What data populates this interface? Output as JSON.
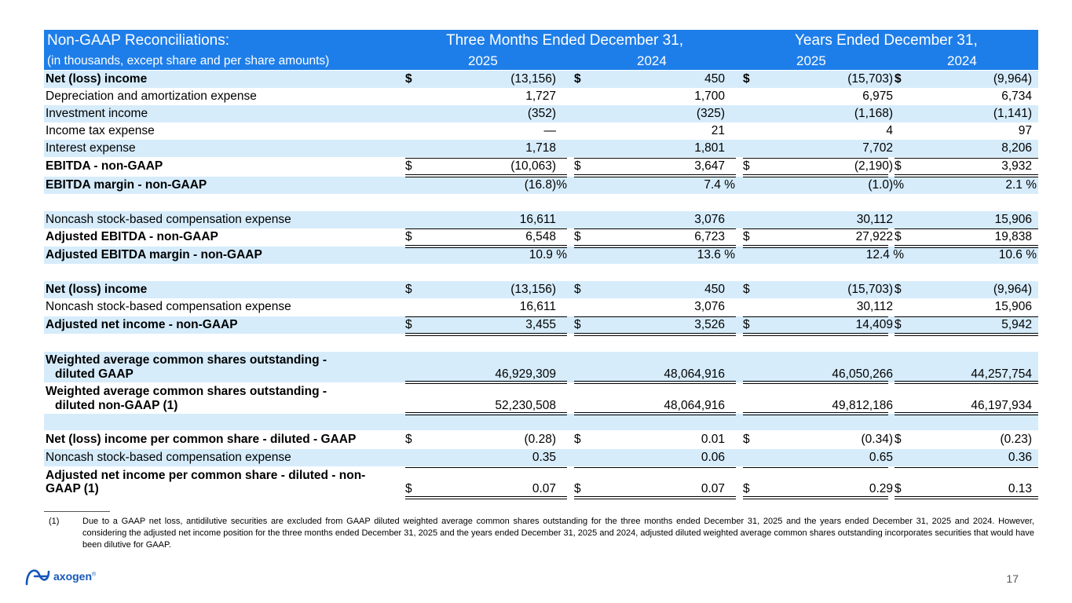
{
  "header": {
    "title": "Non-GAAP Reconciliations:",
    "subtitle": "(in thousands, except share and per share amounts)",
    "three_months": "Three Months Ended December 31,",
    "years": "Years Ended December 31,",
    "cols": [
      "2025",
      "2024",
      "2025",
      "2024"
    ]
  },
  "rows": [
    {
      "label": "Net (loss) income",
      "dollar": "$",
      "v": [
        "(13,156)",
        "450",
        "(15,703)",
        "(9,964)"
      ]
    },
    {
      "label": "Depreciation and amortization expense",
      "v": [
        "1,727",
        "1,700",
        "6,975",
        "6,734"
      ]
    },
    {
      "label": "Investment income",
      "v": [
        "(352)",
        "(325)",
        "(1,168)",
        "(1,141)"
      ]
    },
    {
      "label": "Income tax expense",
      "v": [
        "—",
        "21",
        "4",
        "97"
      ]
    },
    {
      "label": "Interest expense",
      "v": [
        "1,718",
        "1,801",
        "7,702",
        "8,206"
      ]
    },
    {
      "label": "EBITDA - non-GAAP",
      "dollar": "$",
      "v": [
        "(10,063)",
        "3,647",
        "(2,190)",
        "3,932"
      ]
    },
    {
      "label": "EBITDA margin - non-GAAP",
      "v": [
        "(16.8)%",
        "7.4 %",
        "(1.0)%",
        "2.1 %"
      ]
    },
    {
      "label": "Noncash stock-based compensation expense",
      "v": [
        "16,611",
        "3,076",
        "30,112",
        "15,906"
      ]
    },
    {
      "label": "Adjusted EBITDA - non-GAAP",
      "dollar": "$",
      "v": [
        "6,548",
        "6,723",
        "27,922",
        "19,838"
      ]
    },
    {
      "label": "Adjusted EBITDA margin - non-GAAP",
      "v": [
        "10.9 %",
        "13.6 %",
        "12.4 %",
        "10.6 %"
      ]
    },
    {
      "label": "Net (loss) income",
      "dollar": "$",
      "v": [
        "(13,156)",
        "450",
        "(15,703)",
        "(9,964)"
      ]
    },
    {
      "label": "Noncash stock-based compensation expense",
      "v": [
        "16,611",
        "3,076",
        "30,112",
        "15,906"
      ]
    },
    {
      "label": "Adjusted net income - non-GAAP",
      "dollar": "$",
      "v": [
        "3,455",
        "3,526",
        "14,409",
        "5,942"
      ]
    },
    {
      "label1": "Weighted average common shares outstanding -",
      "label2": "diluted GAAP",
      "v": [
        "46,929,309",
        "48,064,916",
        "46,050,266",
        "44,257,754"
      ]
    },
    {
      "label1": "Weighted average common shares outstanding -",
      "label2": "diluted non-GAAP (1)",
      "v": [
        "52,230,508",
        "48,064,916",
        "49,812,186",
        "46,197,934"
      ]
    },
    {
      "label": "Net (loss) income per common share - diluted - GAAP",
      "dollar": "$",
      "v": [
        "(0.28)",
        "0.01",
        "(0.34)",
        "(0.23)"
      ]
    },
    {
      "label": "Noncash stock-based compensation expense",
      "v": [
        "0.35",
        "0.06",
        "0.65",
        "0.36"
      ]
    },
    {
      "label1": "Adjusted net income per common share - diluted - non-",
      "label2": "GAAP (1)",
      "dollar": "$",
      "v": [
        "0.07",
        "0.07",
        "0.29",
        "0.13"
      ]
    }
  ],
  "footnote": {
    "marker": "(1)",
    "text": "Due to a GAAP net loss, antidilutive securities are excluded from GAAP diluted weighted average common shares outstanding for the three months ended December 31, 2025 and the years ended December 31, 2025 and 2024. However, considering the adjusted net income position for the three months ended December 31, 2025 and the years ended December 31, 2025 and 2024, adjusted diluted weighted average common shares outstanding incorporates securities that would have been dilutive for GAAP."
  },
  "logo": {
    "text": "axogen",
    "mark": "®",
    "color": "#1557b8",
    "icon": "axogen-logo-icon"
  },
  "page_number": "17",
  "colors": {
    "header": "#1e7ee9",
    "shade": "#d6ecfb"
  }
}
